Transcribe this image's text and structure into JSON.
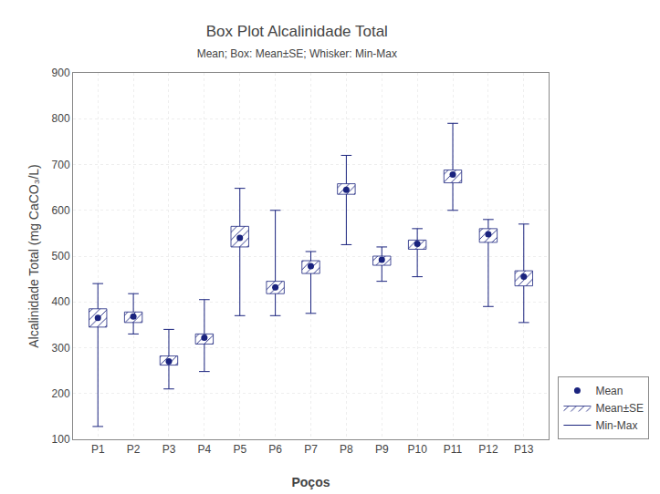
{
  "chart_data": {
    "type": "box",
    "title": "Box Plot Alcalinidade Total",
    "subtitle": "Mean; Box: Mean±SE; Whisker: Min-Max",
    "xlabel": "Poços",
    "ylabel": "Alcalinidade Total (mg CaCO₃/L)",
    "categories": [
      "P1",
      "P2",
      "P3",
      "P4",
      "P5",
      "P6",
      "P7",
      "P8",
      "P9",
      "P10",
      "P11",
      "P12",
      "P13"
    ],
    "series": [
      {
        "name": "Mean",
        "type": "scatter",
        "marker": "circle",
        "color": "#1a237e",
        "values": [
          365,
          368,
          270,
          322,
          540,
          432,
          478,
          645,
          492,
          527,
          678,
          548,
          455
        ]
      },
      {
        "name": "Mean±SE",
        "type": "box",
        "color": "#1a237e",
        "low": [
          345,
          355,
          262,
          308,
          520,
          418,
          462,
          635,
          480,
          515,
          660,
          530,
          435
        ],
        "high": [
          385,
          378,
          282,
          330,
          565,
          445,
          490,
          658,
          500,
          535,
          688,
          560,
          468
        ]
      },
      {
        "name": "Min-Max",
        "type": "whisker",
        "color": "#1a237e",
        "low": [
          128,
          330,
          210,
          248,
          370,
          370,
          375,
          525,
          445,
          455,
          600,
          390,
          355
        ],
        "high": [
          440,
          418,
          340,
          405,
          648,
          600,
          510,
          720,
          520,
          560,
          790,
          580,
          570
        ]
      }
    ],
    "ylim": [
      100,
      900
    ],
    "yticks": [
      100,
      200,
      300,
      400,
      500,
      600,
      700,
      800,
      900
    ],
    "grid": true,
    "legend": "lower right"
  }
}
